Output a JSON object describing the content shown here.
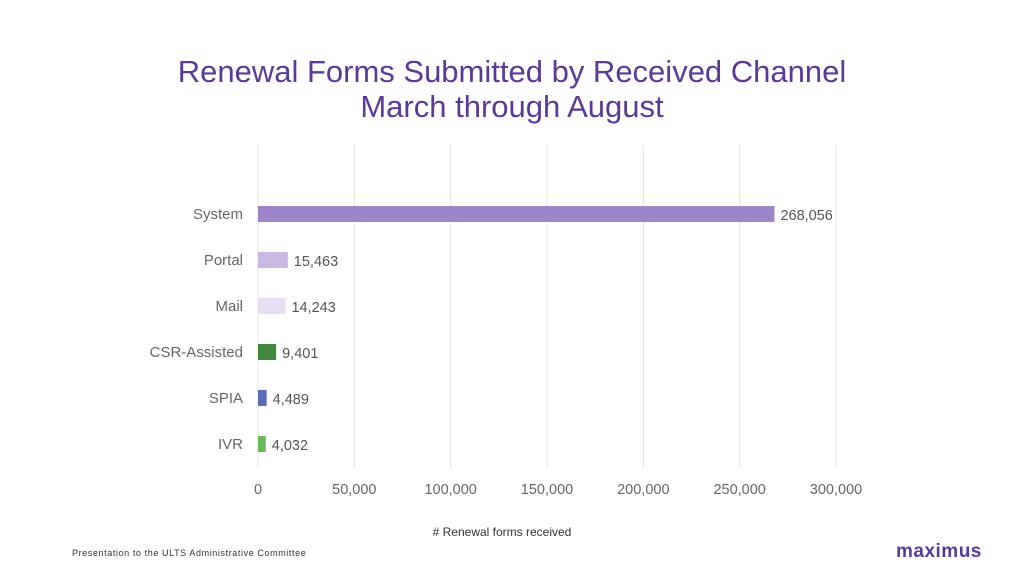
{
  "chart_data": {
    "type": "bar",
    "orientation": "horizontal",
    "title": [
      "Renewal Forms Submitted by Received Channel",
      "March through August"
    ],
    "xlabel": "# Renewal forms received",
    "ylabel": "",
    "categories": [
      "System",
      "Portal",
      "Mail",
      "CSR-Assisted",
      "SPIA",
      "IVR"
    ],
    "values": [
      268056,
      15463,
      14243,
      9401,
      4489,
      4032
    ],
    "data_labels": [
      "268,056",
      "15,463",
      "14,243",
      "9,401",
      "4,489",
      "4,032"
    ],
    "bar_colors": [
      "#9e85c9",
      "#c9b8e4",
      "#e6def2",
      "#3f8a3c",
      "#5b6fb7",
      "#6ab85a"
    ],
    "xlim": [
      0,
      300000
    ],
    "xticks": [
      0,
      50000,
      100000,
      150000,
      200000,
      250000,
      300000
    ],
    "xtick_labels": [
      "0",
      "50,000",
      "100,000",
      "150,000",
      "200,000",
      "250,000",
      "300,000"
    ],
    "grid": "vertical",
    "legend": "none"
  },
  "footer": {
    "text": "Presentation to the ULTS Administrative Committee",
    "logo": "maximus"
  },
  "colors": {
    "title": "#5b3a96",
    "gridline": "#e4e4e4",
    "axis_text": "#666666"
  }
}
